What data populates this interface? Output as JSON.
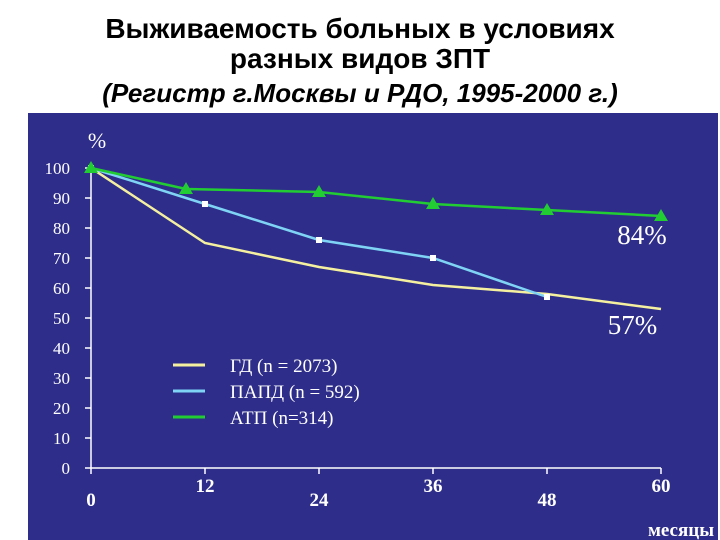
{
  "title_line1": "Выживаемость больных в условиях",
  "title_line2": "разных видов ЗПТ",
  "subtitle": "(Регистр г.Москвы и РДО, 1995-2000 г.)",
  "chart_data": {
    "type": "line",
    "ylabel": "%",
    "xlabel": "месяцы",
    "ylim": [
      0,
      100
    ],
    "xlim": [
      0,
      60
    ],
    "y_ticks": [
      0,
      10,
      20,
      30,
      40,
      50,
      60,
      70,
      80,
      90,
      100
    ],
    "x_ticks": [
      0,
      12,
      24,
      36,
      48,
      60
    ],
    "series": [
      {
        "name": "ГД (n = 2073)",
        "color": "#f5f0a0",
        "marker": "none",
        "x": [
          0,
          12,
          24,
          36,
          48,
          60
        ],
        "y": [
          100,
          75,
          67,
          61,
          58,
          53
        ]
      },
      {
        "name": "ПАПД (n = 592)",
        "color": "#7fd4f5",
        "marker": "square",
        "x": [
          0,
          12,
          24,
          36,
          48
        ],
        "y": [
          100,
          88,
          76,
          70,
          57
        ]
      },
      {
        "name": "АТП (n=314)",
        "color": "#22cc33",
        "marker": "triangle",
        "x": [
          0,
          10,
          24,
          36,
          48,
          60
        ],
        "y": [
          100,
          93,
          92,
          88,
          86,
          84
        ]
      }
    ],
    "annotations": [
      {
        "text": "84%",
        "x": 58,
        "y": 78
      },
      {
        "text": "57%",
        "x": 57,
        "y": 48
      }
    ],
    "legend_position": "center"
  }
}
